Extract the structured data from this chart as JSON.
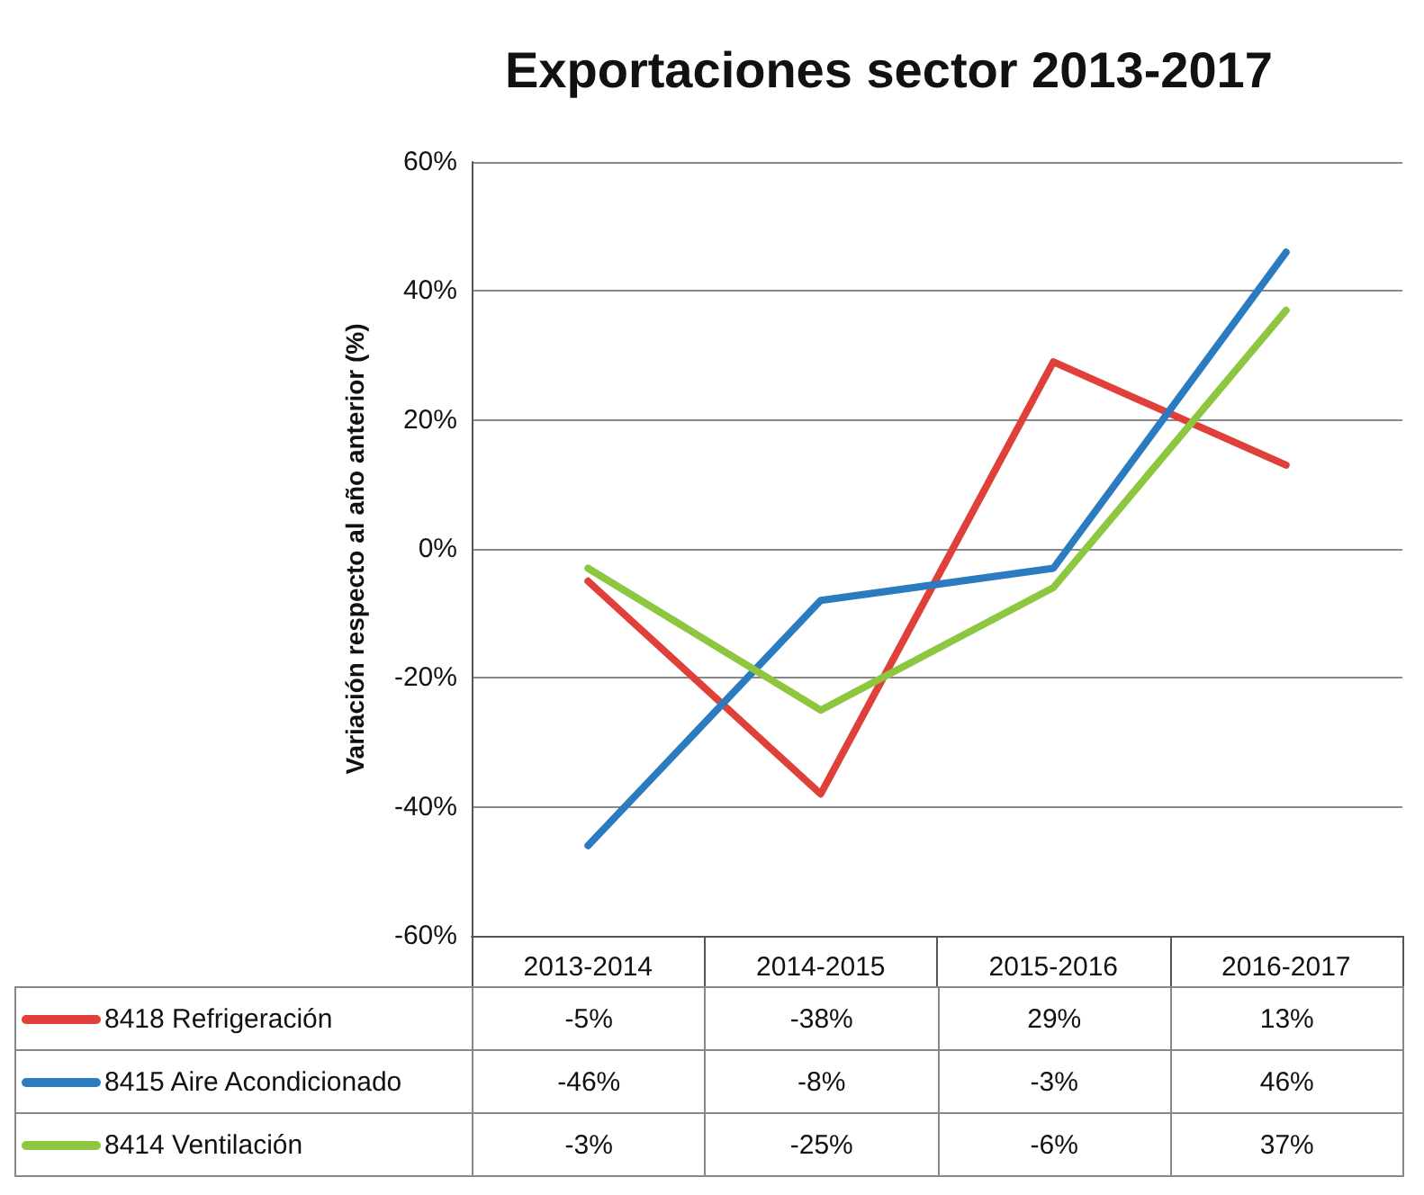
{
  "chart_data": {
    "type": "line",
    "title": "Exportaciones sector 2013-2017",
    "ylabel": "Variación respecto al año anterior (%)",
    "categories": [
      "2013-2014",
      "2014-2015",
      "2015-2016",
      "2016-2017"
    ],
    "series": [
      {
        "name": "8418 Refrigeración",
        "color": "#e0403a",
        "values": [
          -5,
          -38,
          29,
          13
        ],
        "value_labels": [
          "-5%",
          "-38%",
          "29%",
          "13%"
        ]
      },
      {
        "name": "8415 Aire Acondicionado",
        "color": "#2b7bc0",
        "values": [
          -46,
          -8,
          -3,
          46
        ],
        "value_labels": [
          "-46%",
          "-8%",
          "-3%",
          "46%"
        ]
      },
      {
        "name": "8414 Ventilación",
        "color": "#8dc63f",
        "values": [
          -3,
          -25,
          -6,
          37
        ],
        "value_labels": [
          "-3%",
          "-25%",
          "-6%",
          "37%"
        ]
      }
    ],
    "ylim": [
      -60,
      60
    ],
    "yticks": [
      {
        "value": -60,
        "label": "-60%"
      },
      {
        "value": -40,
        "label": "-40%"
      },
      {
        "value": -20,
        "label": "-20%"
      },
      {
        "value": 0,
        "label": "0%"
      },
      {
        "value": 20,
        "label": "20%"
      },
      {
        "value": 40,
        "label": "40%"
      },
      {
        "value": 60,
        "label": "60%"
      }
    ],
    "grid": "y",
    "legend": "bottom",
    "marker": "none",
    "line_style": "solid"
  }
}
